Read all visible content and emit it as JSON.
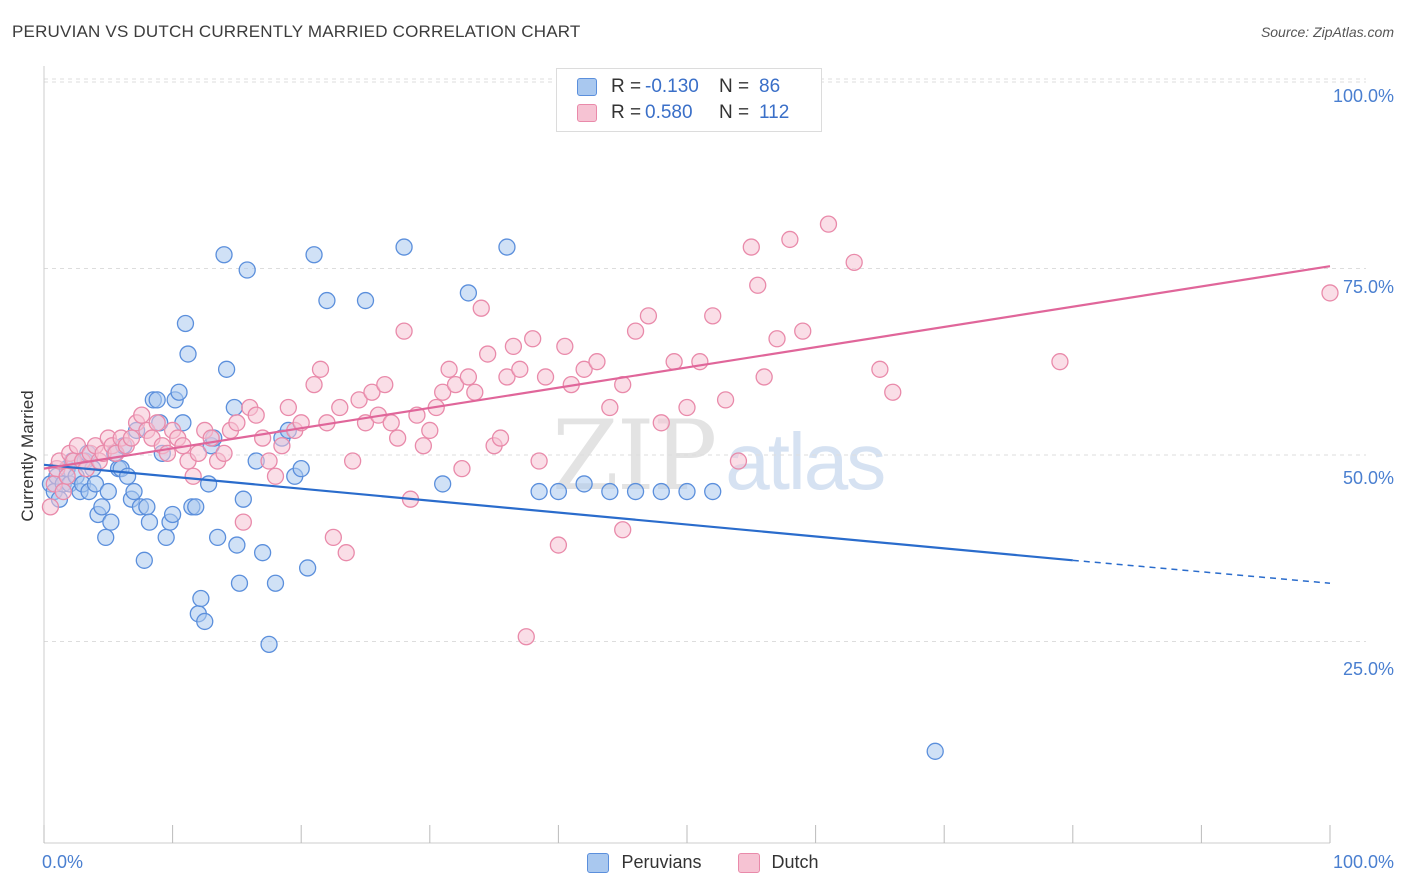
{
  "title": "PERUVIAN VS DUTCH CURRENTLY MARRIED CORRELATION CHART",
  "source": "Source: ZipAtlas.com",
  "watermark": {
    "zip": "ZIP",
    "atlas": "atlas"
  },
  "legend": {
    "rows": [
      {
        "r_label": "R =",
        "r_value": "-0.130",
        "n_label": "N =",
        "n_value": "86"
      },
      {
        "r_label": "R =",
        "r_value": "0.580",
        "n_label": "N =",
        "n_value": "112"
      }
    ]
  },
  "bottom_legend": {
    "series1": "Peruvians",
    "series2": "Dutch"
  },
  "axis": {
    "ylabel": "Currently Married",
    "x_min_label": "0.0%",
    "x_max_label": "100.0%",
    "y_ticks": [
      "100.0%",
      "75.0%",
      "50.0%",
      "25.0%"
    ]
  },
  "colors": {
    "blue_fill": "#a9c8ef",
    "blue_stroke": "#5b8fdc",
    "blue_line": "#2a6ccc",
    "pink_fill": "#f6c3d3",
    "pink_stroke": "#e98aaa",
    "pink_line": "#e0669a",
    "grid": "#dddddd"
  },
  "chart_data": {
    "type": "scatter",
    "xlim": [
      0,
      100
    ],
    "ylim": [
      0,
      100
    ],
    "series": [
      {
        "name": "Peruvians",
        "r": -0.13,
        "n": 86,
        "trend": {
          "x0": 0,
          "y0": 49.5,
          "x1": 80,
          "y1": 37.0,
          "dash_to_x": 100,
          "dash_to_y": 34.0
        },
        "points": [
          [
            0.5,
            47
          ],
          [
            0.8,
            46
          ],
          [
            1,
            48
          ],
          [
            1.2,
            45
          ],
          [
            1.5,
            47
          ],
          [
            1.8,
            49
          ],
          [
            2,
            47
          ],
          [
            2.2,
            50
          ],
          [
            2.5,
            48
          ],
          [
            2.8,
            46
          ],
          [
            3,
            47
          ],
          [
            3.2,
            50
          ],
          [
            3.5,
            46
          ],
          [
            3.8,
            49
          ],
          [
            4,
            47
          ],
          [
            4.2,
            43
          ],
          [
            4.5,
            44
          ],
          [
            4.8,
            40
          ],
          [
            5,
            46
          ],
          [
            5.2,
            42
          ],
          [
            5.5,
            51
          ],
          [
            5.8,
            49
          ],
          [
            6,
            49
          ],
          [
            6.2,
            52
          ],
          [
            6.5,
            48
          ],
          [
            6.8,
            45
          ],
          [
            7,
            46
          ],
          [
            7.2,
            54
          ],
          [
            7.5,
            44
          ],
          [
            7.8,
            37
          ],
          [
            8,
            44
          ],
          [
            8.2,
            42
          ],
          [
            8.5,
            58
          ],
          [
            8.8,
            58
          ],
          [
            9,
            55
          ],
          [
            9.2,
            51
          ],
          [
            9.5,
            40
          ],
          [
            9.8,
            42
          ],
          [
            10,
            43
          ],
          [
            10.2,
            58
          ],
          [
            10.5,
            59
          ],
          [
            10.8,
            55
          ],
          [
            11,
            68
          ],
          [
            11.2,
            64
          ],
          [
            11.5,
            44
          ],
          [
            11.8,
            44
          ],
          [
            12,
            30
          ],
          [
            12.2,
            32
          ],
          [
            12.5,
            29
          ],
          [
            12.8,
            47
          ],
          [
            13,
            52
          ],
          [
            13.2,
            53
          ],
          [
            13.5,
            40
          ],
          [
            14,
            77
          ],
          [
            14.2,
            62
          ],
          [
            14.8,
            57
          ],
          [
            15,
            39
          ],
          [
            15.2,
            34
          ],
          [
            15.5,
            45
          ],
          [
            15.8,
            75
          ],
          [
            16.5,
            50
          ],
          [
            17,
            38
          ],
          [
            17.5,
            26
          ],
          [
            18,
            34
          ],
          [
            18.5,
            53
          ],
          [
            19,
            54
          ],
          [
            19.5,
            48
          ],
          [
            20,
            49
          ],
          [
            20.5,
            36
          ],
          [
            21,
            77
          ],
          [
            22,
            71
          ],
          [
            25,
            71
          ],
          [
            28,
            78
          ],
          [
            31,
            47
          ],
          [
            33,
            72
          ],
          [
            36,
            78
          ],
          [
            38.5,
            46
          ],
          [
            40,
            46
          ],
          [
            42,
            47
          ],
          [
            44,
            46
          ],
          [
            46,
            46
          ],
          [
            48,
            46
          ],
          [
            50,
            46
          ],
          [
            52,
            46
          ],
          [
            69.3,
            12
          ],
          [
            3.4,
            51
          ]
        ]
      },
      {
        "name": "Dutch",
        "r": 0.58,
        "n": 112,
        "trend": {
          "x0": 0,
          "y0": 49.0,
          "x1": 100,
          "y1": 75.5
        },
        "points": [
          [
            0.5,
            44
          ],
          [
            0.8,
            47
          ],
          [
            1,
            49
          ],
          [
            1.2,
            50
          ],
          [
            1.5,
            46
          ],
          [
            1.8,
            48
          ],
          [
            2,
            51
          ],
          [
            2.3,
            50
          ],
          [
            2.6,
            52
          ],
          [
            3,
            50
          ],
          [
            3.3,
            49
          ],
          [
            3.6,
            51
          ],
          [
            4,
            52
          ],
          [
            4.3,
            50
          ],
          [
            4.6,
            51
          ],
          [
            5,
            53
          ],
          [
            5.3,
            52
          ],
          [
            5.6,
            51
          ],
          [
            6,
            53
          ],
          [
            6.4,
            52
          ],
          [
            6.8,
            53
          ],
          [
            7.2,
            55
          ],
          [
            7.6,
            56
          ],
          [
            8,
            54
          ],
          [
            8.4,
            53
          ],
          [
            8.8,
            55
          ],
          [
            9.2,
            52
          ],
          [
            9.6,
            51
          ],
          [
            10,
            54
          ],
          [
            10.4,
            53
          ],
          [
            10.8,
            52
          ],
          [
            11.2,
            50
          ],
          [
            11.6,
            48
          ],
          [
            12,
            51
          ],
          [
            12.5,
            54
          ],
          [
            13,
            53
          ],
          [
            13.5,
            50
          ],
          [
            14,
            51
          ],
          [
            14.5,
            54
          ],
          [
            15,
            55
          ],
          [
            15.5,
            42
          ],
          [
            16,
            57
          ],
          [
            16.5,
            56
          ],
          [
            17,
            53
          ],
          [
            17.5,
            50
          ],
          [
            18,
            48
          ],
          [
            18.5,
            52
          ],
          [
            19,
            57
          ],
          [
            19.5,
            54
          ],
          [
            20,
            55
          ],
          [
            21,
            60
          ],
          [
            21.5,
            62
          ],
          [
            22,
            55
          ],
          [
            22.5,
            40
          ],
          [
            23,
            57
          ],
          [
            23.5,
            38
          ],
          [
            24,
            50
          ],
          [
            24.5,
            58
          ],
          [
            25,
            55
          ],
          [
            25.5,
            59
          ],
          [
            26,
            56
          ],
          [
            26.5,
            60
          ],
          [
            27,
            55
          ],
          [
            27.5,
            53
          ],
          [
            28,
            67
          ],
          [
            28.5,
            45
          ],
          [
            29,
            56
          ],
          [
            29.5,
            52
          ],
          [
            30,
            54
          ],
          [
            30.5,
            57
          ],
          [
            31,
            59
          ],
          [
            31.5,
            62
          ],
          [
            32,
            60
          ],
          [
            32.5,
            49
          ],
          [
            33,
            61
          ],
          [
            33.5,
            59
          ],
          [
            34,
            70
          ],
          [
            34.5,
            64
          ],
          [
            35,
            52
          ],
          [
            35.5,
            53
          ],
          [
            36,
            61
          ],
          [
            36.5,
            65
          ],
          [
            37,
            62
          ],
          [
            37.5,
            27
          ],
          [
            38,
            66
          ],
          [
            38.5,
            50
          ],
          [
            39,
            61
          ],
          [
            40,
            39
          ],
          [
            40.5,
            65
          ],
          [
            41,
            60
          ],
          [
            42,
            62
          ],
          [
            43,
            63
          ],
          [
            44,
            57
          ],
          [
            45,
            60
          ],
          [
            46,
            67
          ],
          [
            47,
            69
          ],
          [
            48,
            55
          ],
          [
            49,
            63
          ],
          [
            50,
            57
          ],
          [
            51,
            63
          ],
          [
            52,
            69
          ],
          [
            53,
            58
          ],
          [
            54,
            50
          ],
          [
            55,
            78
          ],
          [
            55.5,
            73
          ],
          [
            56,
            61
          ],
          [
            57,
            66
          ],
          [
            58,
            79
          ],
          [
            59,
            67
          ],
          [
            61,
            81
          ],
          [
            63,
            76
          ],
          [
            65,
            62
          ],
          [
            66,
            59
          ],
          [
            79,
            63
          ],
          [
            100,
            72
          ],
          [
            45,
            41
          ]
        ]
      }
    ]
  }
}
